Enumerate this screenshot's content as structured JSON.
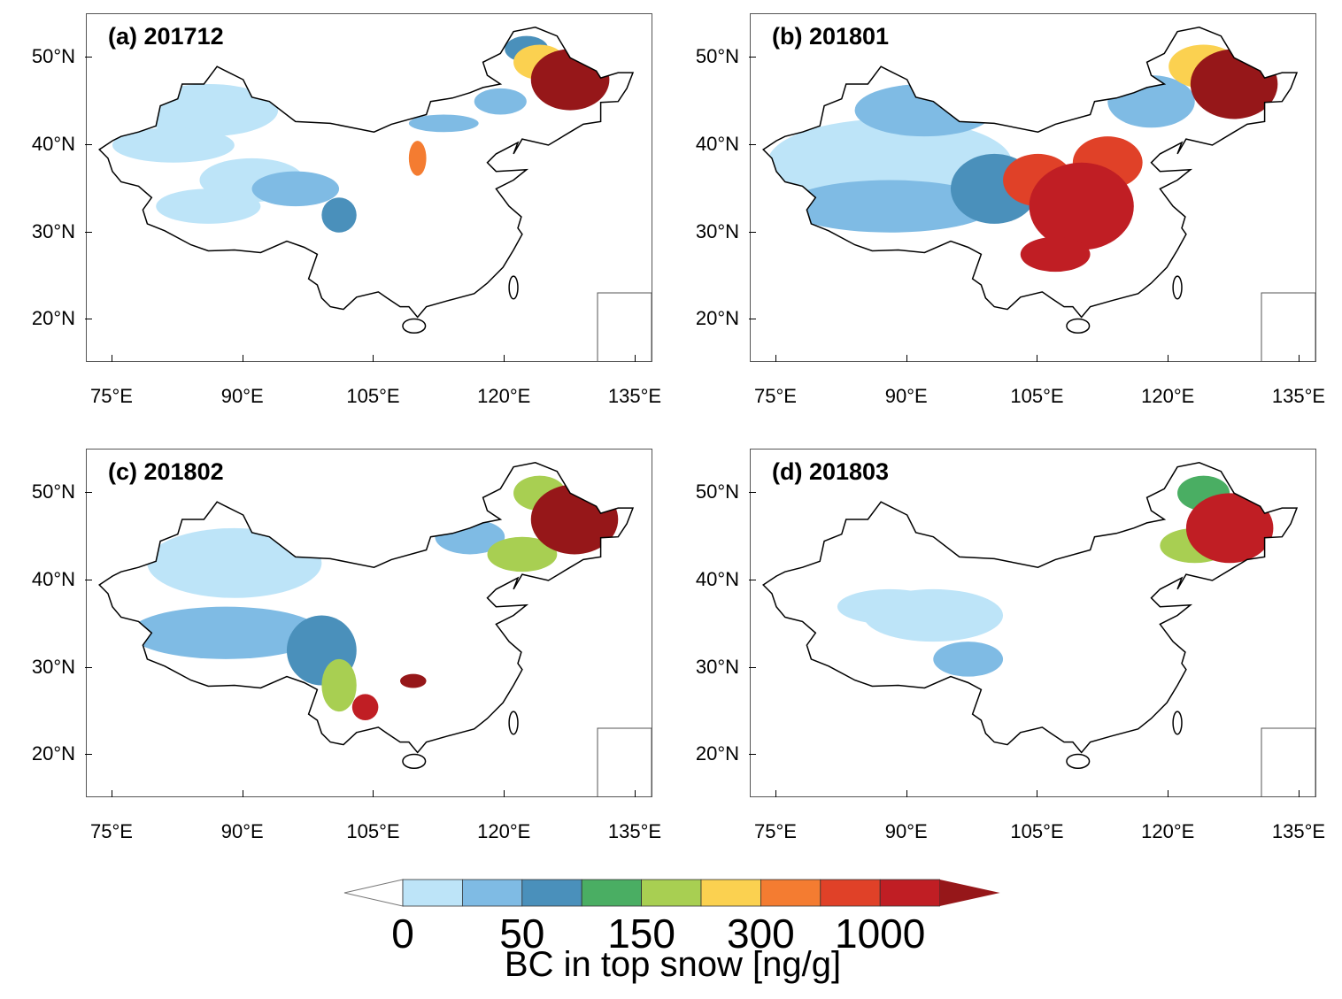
{
  "panels": [
    {
      "title": "(a) 201712"
    },
    {
      "title": "(b) 201801"
    },
    {
      "title": "(c) 201802"
    },
    {
      "title": "(d) 201803"
    }
  ],
  "lat_labels": [
    "50°N",
    "40°N",
    "30°N",
    "20°N"
  ],
  "lon_labels": [
    "75°E",
    "90°E",
    "105°E",
    "120°E",
    "135°E"
  ],
  "colorbar": {
    "title": "BC in top snow [ng/g]",
    "labels": [
      "0",
      "50",
      "150",
      "300",
      "1000"
    ],
    "colors": [
      "#ffffff",
      "#bde4f8",
      "#7fbbe4",
      "#4a90bb",
      "#4aae63",
      "#a8cf52",
      "#fbd150",
      "#f47c31",
      "#e04128",
      "#c01e24",
      "#961719"
    ]
  }
}
